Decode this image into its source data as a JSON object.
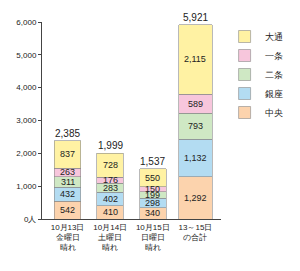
{
  "chart_data": {
    "type": "bar",
    "stacked": true,
    "data_labels": true,
    "grid": false,
    "legend": "right",
    "categories": [
      "10月13日\n金曜日\n晴れ",
      "10月14日\n土曜日\n晴れ",
      "10月15日\n日曜日\n晴れ",
      "13～15日\nの合計"
    ],
    "series": [
      {
        "name": "中央",
        "color": "#fcd3ad",
        "values": [
          542,
          410,
          340,
          1292
        ],
        "value_labels": [
          "542",
          "410",
          "340",
          "1,292"
        ]
      },
      {
        "name": "銀座",
        "color": "#b3dcf2",
        "values": [
          432,
          402,
          298,
          1132
        ],
        "value_labels": [
          "432",
          "402",
          "298",
          "1,132"
        ]
      },
      {
        "name": "二条",
        "color": "#cfe8c4",
        "values": [
          311,
          283,
          199,
          793
        ]
      },
      {
        "name": "一条",
        "color": "#f7c6dc",
        "values": [
          263,
          176,
          150,
          589
        ]
      },
      {
        "name": "大通",
        "color": "#fff2a3",
        "values": [
          837,
          728,
          550,
          2115
        ],
        "value_labels": [
          "837",
          "728",
          "550",
          "2,115"
        ]
      }
    ],
    "totals": {
      "values": [
        2385,
        1999,
        1537,
        5921
      ],
      "labels": [
        "2,385",
        "1,999",
        "1,537",
        "5,921"
      ]
    },
    "ylim": [
      0,
      6000
    ],
    "yticks": [
      {
        "value": 0,
        "label": "0人"
      },
      {
        "value": 1000,
        "label": "1,000"
      },
      {
        "value": 2000,
        "label": "2,000"
      },
      {
        "value": 3000,
        "label": "3,000"
      },
      {
        "value": 4000,
        "label": "4,000"
      },
      {
        "value": 5000,
        "label": "5,000"
      },
      {
        "value": 6000,
        "label": "6,000"
      }
    ]
  }
}
